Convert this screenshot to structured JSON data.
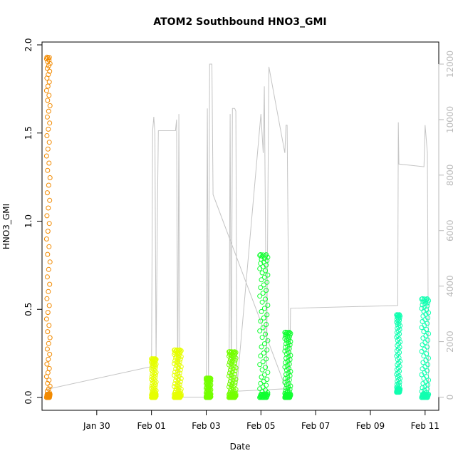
{
  "chart_data": {
    "type": "scatter",
    "title": "ATOM2 Southbound HNO3_GMI",
    "xlabel": "Date",
    "ylabel": "HNO3_GMI",
    "x_type": "date",
    "xlim": [
      "2017-01-28T00:00",
      "2017-02-11T12:00"
    ],
    "ylim": [
      0,
      2.0
    ],
    "y_ticks": [
      0.0,
      0.5,
      1.0,
      1.5,
      2.0
    ],
    "y_tick_labels": [
      "0.0",
      "0.5",
      "1.0",
      "1.5",
      "2.0"
    ],
    "x_ticks": [
      "2017-01-30",
      "2017-02-01",
      "2017-02-03",
      "2017-02-05",
      "2017-02-07",
      "2017-02-09",
      "2017-02-11"
    ],
    "x_tick_labels": [
      "Jan 30",
      "Feb 01",
      "Feb 03",
      "Feb 05",
      "Feb 07",
      "Feb 09",
      "Feb 11"
    ],
    "secondary_axis": {
      "side": "right",
      "color": "#b8b8b8",
      "ylim": [
        -200,
        12400
      ],
      "ticks": [
        0,
        2000,
        4000,
        6000,
        8000,
        10000,
        12000
      ],
      "tick_labels": [
        "0",
        "2000",
        "4000",
        "6000",
        "8000",
        "10000",
        "12000"
      ]
    },
    "grid": false,
    "legend": "none",
    "altitude_line": {
      "color": "#c4c4c4",
      "points": [
        [
          "2017-01-28T06:00",
          0
        ],
        [
          "2017-01-28T06:30",
          300
        ],
        [
          "2017-02-01T00:00",
          1100
        ],
        [
          "2017-02-01T01:00",
          9600
        ],
        [
          "2017-02-01T02:00",
          10100
        ],
        [
          "2017-02-01T03:00",
          9500
        ],
        [
          "2017-02-01T04:00",
          1200
        ],
        [
          "2017-02-01T05:00",
          6000
        ],
        [
          "2017-02-01T06:00",
          9600
        ],
        [
          "2017-02-01T21:00",
          9600
        ],
        [
          "2017-02-01T22:00",
          10000
        ],
        [
          "2017-02-01T23:00",
          200
        ],
        [
          "2017-02-02T00:00",
          10200
        ],
        [
          "2017-02-02T01:00",
          100
        ],
        [
          "2017-02-02T02:00",
          0
        ],
        [
          "2017-02-03T00:00",
          0
        ],
        [
          "2017-02-03T01:00",
          10400
        ],
        [
          "2017-02-03T02:00",
          100
        ],
        [
          "2017-02-03T03:00",
          12000
        ],
        [
          "2017-02-03T04:00",
          12000
        ],
        [
          "2017-02-03T05:00",
          12000
        ],
        [
          "2017-02-03T06:00",
          7300
        ],
        [
          "2017-02-05T22:00",
          300
        ],
        [
          "2017-02-03T20:00",
          200
        ],
        [
          "2017-02-03T21:00",
          10200
        ],
        [
          "2017-02-03T22:00",
          200
        ],
        [
          "2017-02-03T23:00",
          10400
        ],
        [
          "2017-02-04T01:00",
          10400
        ],
        [
          "2017-02-04T02:00",
          10300
        ],
        [
          "2017-02-04T03:00",
          400
        ],
        [
          "2017-02-05T00:00",
          10200
        ],
        [
          "2017-02-05T02:00",
          8800
        ],
        [
          "2017-02-05T03:00",
          11200
        ],
        [
          "2017-02-05T05:00",
          1000
        ],
        [
          "2017-02-05T07:00",
          11900
        ],
        [
          "2017-02-05T21:00",
          8800
        ],
        [
          "2017-02-05T22:00",
          9800
        ],
        [
          "2017-02-05T23:00",
          9800
        ],
        [
          "2017-02-06T01:00",
          200
        ],
        [
          "2017-02-06T02:00",
          3200
        ],
        [
          "2017-02-10T00:00",
          3300
        ],
        [
          "2017-02-10T00:30",
          9900
        ],
        [
          "2017-02-10T01:00",
          8400
        ],
        [
          "2017-02-10T23:00",
          8300
        ],
        [
          "2017-02-10T23:30",
          9000
        ],
        [
          "2017-02-11T00:00",
          9800
        ],
        [
          "2017-02-11T02:00",
          8800
        ],
        [
          "2017-02-11T03:00",
          200
        ]
      ]
    },
    "series": [
      {
        "color": "#f28a00",
        "x_range": [
          "2017-01-28T04:00",
          "2017-01-28T07:00"
        ],
        "y_range": [
          0.0,
          1.93
        ]
      },
      {
        "color": "#e6ff00",
        "x_range": [
          "2017-02-01T00:00",
          "2017-02-01T04:00"
        ],
        "y_range": [
          0.0,
          0.22
        ]
      },
      {
        "color": "#e6ff00",
        "x_range": [
          "2017-02-01T20:00",
          "2017-02-02T02:00"
        ],
        "y_range": [
          0.0,
          0.27
        ]
      },
      {
        "color": "#74ff00",
        "x_range": [
          "2017-02-03T00:00",
          "2017-02-03T04:00"
        ],
        "y_range": [
          0.0,
          0.11
        ]
      },
      {
        "color": "#74ff00",
        "x_range": [
          "2017-02-03T20:00",
          "2017-02-04T02:00"
        ],
        "y_range": [
          0.0,
          0.26
        ]
      },
      {
        "color": "#10ff30",
        "x_range": [
          "2017-02-04T23:00",
          "2017-02-05T06:00"
        ],
        "y_range": [
          0.0,
          0.81
        ]
      },
      {
        "color": "#10ff30",
        "x_range": [
          "2017-02-05T21:00",
          "2017-02-06T02:00"
        ],
        "y_range": [
          0.0,
          0.37
        ]
      },
      {
        "color": "#10ffb0",
        "x_range": [
          "2017-02-09T23:00",
          "2017-02-10T02:00"
        ],
        "y_range": [
          0.03,
          0.47
        ]
      },
      {
        "color": "#10ffb0",
        "x_range": [
          "2017-02-10T21:00",
          "2017-02-11T03:00"
        ],
        "y_range": [
          0.0,
          0.56
        ]
      }
    ]
  }
}
